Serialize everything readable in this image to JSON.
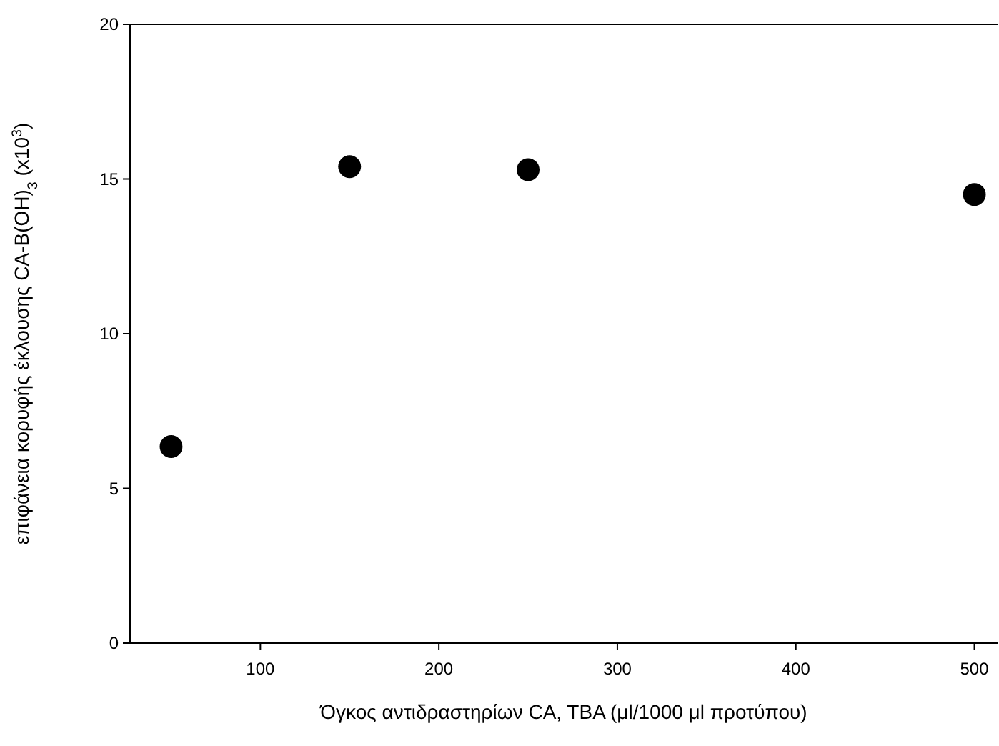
{
  "chart_data": {
    "type": "scatter",
    "xlabel": "Όγκος αντιδραστηρίων CA, TBA (μl/1000 μl προτύπου)",
    "ylabel": "επιφάνεια κορυφής έκλουσης CA-B(OH)$_{3}$ (x10$^{3}$)",
    "x": [
      50,
      150,
      250,
      500
    ],
    "series": [
      {
        "color": "#000000",
        "values": [
          6.35,
          15.4,
          15.3,
          14.5
        ]
      }
    ],
    "xlim": [
      27,
      513
    ],
    "xticks": [
      100,
      200,
      300,
      400,
      500
    ],
    "ylim": [
      0,
      20
    ],
    "yticks": [
      0,
      5,
      10,
      15,
      20
    ],
    "marker": "circle",
    "grid": false
  }
}
